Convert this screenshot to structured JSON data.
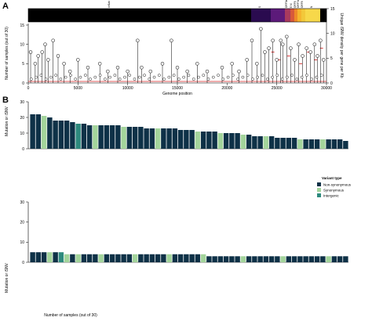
{
  "panel_a": {
    "letter": "A",
    "xlabel": "Genome position",
    "ylabel_left": "Number of samples (out of 30)",
    "ylabel_right": "Unique iSNV density per gene per Kb",
    "x_ticks": [
      "0",
      "5000",
      "10000",
      "15000",
      "20000",
      "25000",
      "30000"
    ],
    "y_ticks": [
      "0",
      "5",
      "10",
      "15"
    ],
    "right_ticks": [
      "0",
      "5",
      "10",
      "15"
    ],
    "gene_labels": [
      "orf1ab",
      "S",
      "ORF3a",
      "E M",
      "ORF6",
      "ORF7a",
      "ORF8",
      "N"
    ]
  },
  "panel_b": {
    "letter": "B",
    "top_ylabel": "Mutation or iSNV",
    "bottom_ylabel": "Mutation or iSNV",
    "xlabel": "Number of samples (out of 30)",
    "legend_title": "Variant type",
    "legend_items": [
      {
        "label": "Non-synonymous",
        "color": "#0e3147"
      },
      {
        "label": "Synonymous",
        "color": "#a3d49b"
      },
      {
        "label": "Intergenic",
        "color": "#2e8a7e"
      }
    ]
  },
  "chart_data": [
    {
      "type": "scatter",
      "title": "",
      "xlabel": "Genome position",
      "ylabel": "Number of samples (out of 30)",
      "xlim": [
        0,
        30000
      ],
      "ylim": [
        0,
        15
      ],
      "points": [
        [
          240,
          8
        ],
        [
          700,
          5
        ],
        [
          1000,
          7
        ],
        [
          1400,
          8
        ],
        [
          1700,
          10
        ],
        [
          2000,
          6
        ],
        [
          2500,
          11
        ],
        [
          3000,
          7
        ],
        [
          3600,
          5
        ],
        [
          4200,
          3
        ],
        [
          5000,
          6
        ],
        [
          6000,
          4
        ],
        [
          7200,
          5
        ],
        [
          8000,
          3
        ],
        [
          9000,
          4
        ],
        [
          10000,
          3
        ],
        [
          11000,
          11
        ],
        [
          11400,
          4
        ],
        [
          12300,
          3
        ],
        [
          13500,
          5
        ],
        [
          14400,
          11
        ],
        [
          15000,
          4
        ],
        [
          16000,
          3
        ],
        [
          17000,
          5
        ],
        [
          18000,
          3
        ],
        [
          19500,
          4
        ],
        [
          20500,
          5
        ],
        [
          21200,
          3
        ],
        [
          22000,
          6
        ],
        [
          22500,
          11
        ],
        [
          23000,
          5
        ],
        [
          23400,
          14
        ],
        [
          23800,
          8
        ],
        [
          24200,
          9
        ],
        [
          24600,
          11
        ],
        [
          25000,
          6
        ],
        [
          25400,
          11
        ],
        [
          25600,
          10
        ],
        [
          26000,
          12
        ],
        [
          26400,
          9
        ],
        [
          26800,
          6
        ],
        [
          27200,
          10
        ],
        [
          27600,
          7
        ],
        [
          28000,
          9
        ],
        [
          28400,
          8
        ],
        [
          28800,
          10
        ],
        [
          29100,
          7
        ],
        [
          29400,
          11
        ],
        [
          29700,
          6
        ]
      ]
    },
    {
      "type": "bar",
      "title": "",
      "ylabel": "Mutation or iSNV",
      "ylim": [
        0,
        30
      ],
      "values": [
        22,
        22,
        21,
        20,
        18,
        18,
        18,
        17,
        16,
        16,
        15,
        15,
        15,
        15,
        15,
        15,
        14,
        14,
        14,
        14,
        13,
        13,
        13,
        13,
        13,
        13,
        12,
        12,
        12,
        11,
        11,
        11,
        11,
        10,
        10,
        10,
        10,
        9,
        9,
        8,
        8,
        8,
        8,
        7,
        7,
        7,
        7,
        6,
        6,
        6,
        6,
        6,
        6,
        6,
        6,
        5
      ],
      "colors": [
        "N",
        "N",
        "S",
        "N",
        "N",
        "N",
        "N",
        "N",
        "I",
        "N",
        "N",
        "S",
        "N",
        "N",
        "N",
        "N",
        "S",
        "N",
        "N",
        "N",
        "N",
        "N",
        "S",
        "N",
        "N",
        "N",
        "N",
        "N",
        "N",
        "S",
        "N",
        "N",
        "N",
        "S",
        "N",
        "N",
        "N",
        "S",
        "N",
        "N",
        "N",
        "S",
        "N",
        "N",
        "N",
        "N",
        "N",
        "S",
        "N",
        "N",
        "N",
        "S",
        "N",
        "N",
        "N",
        "N"
      ]
    },
    {
      "type": "bar",
      "title": "",
      "ylabel": "Mutation or iSNV",
      "xlabel": "Number of samples (out of 30)",
      "ylim": [
        0,
        30
      ],
      "values": [
        5,
        5,
        5,
        5,
        5,
        5,
        4,
        4,
        4,
        4,
        4,
        4,
        4,
        4,
        4,
        4,
        4,
        4,
        4,
        4,
        4,
        4,
        4,
        4,
        4,
        4,
        4,
        4,
        4,
        4,
        4,
        3,
        3,
        3,
        3,
        3,
        3,
        3,
        3,
        3,
        3,
        3,
        3,
        3,
        3,
        3,
        3,
        3,
        3,
        3,
        3,
        3,
        3,
        3,
        3,
        3
      ],
      "colors": [
        "N",
        "N",
        "N",
        "S",
        "N",
        "I",
        "S",
        "N",
        "S",
        "N",
        "N",
        "N",
        "S",
        "N",
        "N",
        "N",
        "N",
        "N",
        "S",
        "N",
        "N",
        "N",
        "N",
        "N",
        "S",
        "N",
        "N",
        "N",
        "N",
        "N",
        "S",
        "N",
        "N",
        "N",
        "N",
        "N",
        "N",
        "S",
        "N",
        "N",
        "N",
        "N",
        "N",
        "N",
        "S",
        "N",
        "N",
        "N",
        "N",
        "N",
        "N",
        "N",
        "S",
        "N",
        "N",
        "N"
      ]
    }
  ]
}
